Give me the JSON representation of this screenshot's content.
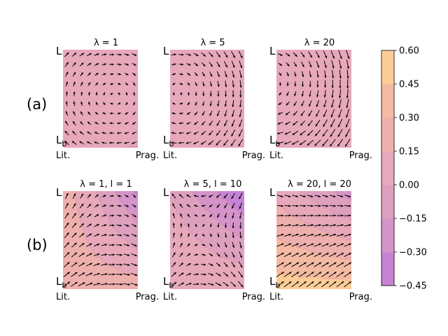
{
  "figure": {
    "row_labels": [
      "(a)",
      "(b)"
    ]
  },
  "panels": [
    {
      "row": 0,
      "col": 0,
      "title": "λ = 1",
      "x_left": "Lit.",
      "x_right": "Prag.",
      "y_top": "L",
      "y_bottom": "L",
      "y_bottom_sub": "b",
      "regime": "a1"
    },
    {
      "row": 0,
      "col": 1,
      "title": "λ = 5",
      "x_left": "Lit.",
      "x_right": "Prag.",
      "y_top": "L",
      "y_bottom": "L",
      "y_bottom_sub": "b",
      "regime": "a2"
    },
    {
      "row": 0,
      "col": 2,
      "title": "λ = 20",
      "x_left": "Lit.",
      "x_right": "Prag.",
      "y_top": "L",
      "y_bottom": "L",
      "y_bottom_sub": "b",
      "regime": "a3"
    },
    {
      "row": 1,
      "col": 0,
      "title": "λ = 1, l = 1",
      "x_left": "Lit.",
      "x_right": "Prag.",
      "y_top": "L",
      "y_bottom": "L",
      "y_bottom_sub": "b",
      "regime": "b1"
    },
    {
      "row": 1,
      "col": 1,
      "title": "λ = 5, l = 10",
      "x_left": "Lit.",
      "x_right": "Prag.",
      "y_top": "L",
      "y_bottom": "L",
      "y_bottom_sub": "b",
      "regime": "b2"
    },
    {
      "row": 1,
      "col": 2,
      "title": "λ = 20, l = 20",
      "x_left": "Lit.",
      "x_right": "Prag.",
      "y_top": "L",
      "y_bottom": "L",
      "y_bottom_sub": "b",
      "regime": "b3"
    }
  ],
  "colorbar": {
    "min": -0.45,
    "max": 0.6,
    "levels": [
      -0.45,
      -0.3,
      -0.15,
      0.0,
      0.15,
      0.3,
      0.45,
      0.6
    ],
    "tick_labels": [
      "−0.45",
      "−0.30",
      "−0.15",
      "0.00",
      "0.15",
      "0.30",
      "0.45",
      "0.60"
    ],
    "band_colors": [
      "#c683d3",
      "#d494c9",
      "#dea0bf",
      "#e6a8ba",
      "#eeb0ad",
      "#f4baa3",
      "#fccd97"
    ]
  },
  "chart_data": {
    "type": "heatmap",
    "description_type": "filled contour plots with quiver vector fields",
    "x_axis": [
      "Lit.",
      "Prag."
    ],
    "y_axis": [
      "L_b",
      "L"
    ],
    "colorbar_range": [
      -0.45,
      0.6
    ],
    "colorbar_ticks": [
      -0.45,
      -0.3,
      -0.15,
      0.0,
      0.15,
      0.3,
      0.45,
      0.6
    ],
    "panels": [
      "λ = 1",
      "λ = 5",
      "λ = 20",
      "λ = 1, l = 1",
      "λ = 5, l = 10",
      "λ = 20, l = 20"
    ]
  }
}
